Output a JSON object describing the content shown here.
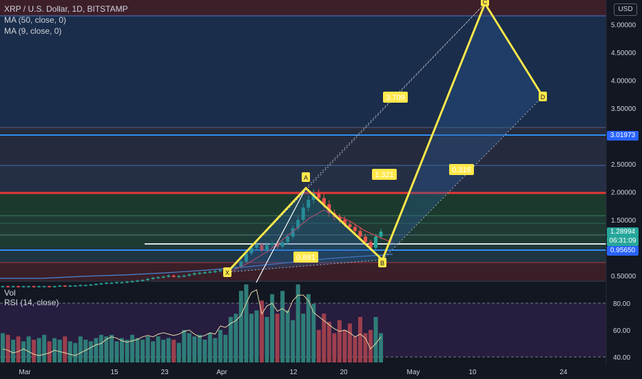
{
  "header": {
    "symbol_line": "XRP / U.S. Dollar, 1D, BITSTAMP",
    "ma1": "MA (50, close, 0)",
    "ma2": "MA (9, close, 0)"
  },
  "currency": "USD",
  "price_tags": [
    {
      "label": "3.01973",
      "color": "#2962ff"
    },
    {
      "label": "1.28994",
      "color": "#26a69a"
    },
    {
      "label": "06:31:09",
      "color": "#26a69a"
    },
    {
      "label": "0.95650",
      "color": "#2962ff"
    }
  ],
  "sub_labels": {
    "vol": "Vol",
    "rsi": "RSI (14, close)"
  },
  "chart_data": [
    {
      "type": "candlestick",
      "title": "XRP / U.S. Dollar, 1D, BITSTAMP",
      "y_axis": {
        "min": 0.4,
        "max": 5.4,
        "ticks": [
          0.5,
          1.0,
          1.5,
          2.0,
          2.5,
          3.0,
          3.5,
          4.0,
          4.5,
          5.0
        ],
        "tick_labels": [
          "0.50000",
          "1.00000",
          "1.50000",
          "2.00000",
          "2.50000",
          "3.00000",
          "3.50000",
          "4.00000",
          "4.50000",
          "5.00000"
        ]
      },
      "x_axis": {
        "tick_labels": [
          "Mar",
          "15",
          "23",
          "Apr",
          "12",
          "20",
          "May",
          "10",
          "24"
        ]
      },
      "candles_close": [
        0.31,
        0.3,
        0.31,
        0.3,
        0.31,
        0.31,
        0.3,
        0.31,
        0.31,
        0.3,
        0.31,
        0.32,
        0.31,
        0.32,
        0.32,
        0.33,
        0.33,
        0.34,
        0.35,
        0.36,
        0.37,
        0.37,
        0.38,
        0.38,
        0.39,
        0.4,
        0.41,
        0.42,
        0.44,
        0.46,
        0.47,
        0.48,
        0.5,
        0.48,
        0.49,
        0.5,
        0.52,
        0.54,
        0.55,
        0.56,
        0.57,
        0.58,
        0.6,
        0.62,
        0.63,
        0.65,
        0.75,
        0.9,
        1.0,
        1.05,
        0.95,
        1.05,
        1.08,
        1.02,
        1.1,
        1.2,
        1.35,
        1.5,
        1.72,
        1.86,
        1.97,
        1.89,
        1.78,
        1.62,
        1.55,
        1.5,
        1.42,
        1.37,
        1.3,
        1.2,
        1.1,
        1.0,
        1.2,
        1.29
      ],
      "fib_levels": [
        {
          "value": 3.01973,
          "label": "3.01973"
        },
        {
          "value": 0.9565,
          "label": "0.95650"
        }
      ],
      "pattern_points": [
        {
          "label": "X",
          "date": "Apr 1",
          "price": 0.6
        },
        {
          "label": "A",
          "date": "Apr 12",
          "price": 2.08
        },
        {
          "label": "B",
          "date": "Apr 25",
          "price": 0.88
        },
        {
          "label": "C",
          "date": "May 10",
          "price": 5.25
        },
        {
          "label": "D",
          "date": "May 21",
          "price": 3.82
        }
      ],
      "pattern_ratios": [
        "0.881",
        "3.709",
        "1.321",
        "0.316"
      ]
    },
    {
      "type": "bar",
      "title": "Vol",
      "values": [
        18,
        17,
        14,
        16,
        13,
        16,
        14,
        15,
        17,
        13,
        15,
        14,
        16,
        13,
        12,
        16,
        14,
        13,
        15,
        17,
        16,
        17,
        13,
        15,
        14,
        17,
        15,
        14,
        16,
        13,
        16,
        14,
        15,
        14,
        12,
        20,
        18,
        16,
        17,
        14,
        18,
        15,
        20,
        17,
        28,
        30,
        44,
        48,
        30,
        32,
        38,
        28,
        42,
        30,
        44,
        32,
        26,
        48,
        30,
        42,
        36,
        20,
        30,
        25,
        18,
        26,
        20,
        24,
        16,
        28,
        18,
        20,
        28,
        18
      ]
    },
    {
      "type": "line",
      "title": "RSI (14, close)",
      "y_axis": {
        "ticks": [
          40,
          60,
          80
        ],
        "tick_labels": [
          "40.00",
          "60.00",
          "80.00"
        ]
      },
      "values": [
        46,
        45,
        43,
        44,
        46,
        44,
        42,
        41,
        42,
        43,
        45,
        44,
        43,
        42,
        41,
        43,
        45,
        47,
        49,
        50,
        53,
        55,
        54,
        52,
        51,
        52,
        53,
        55,
        56,
        55,
        57,
        58,
        57,
        56,
        57,
        59,
        60,
        57,
        55,
        56,
        58,
        57,
        63,
        62,
        65,
        67,
        71,
        80,
        88,
        90,
        72,
        78,
        80,
        74,
        76,
        73,
        82,
        86,
        86,
        82,
        73,
        70,
        67,
        64,
        61,
        59,
        60,
        58,
        55,
        57,
        54,
        46,
        50,
        55
      ]
    }
  ]
}
